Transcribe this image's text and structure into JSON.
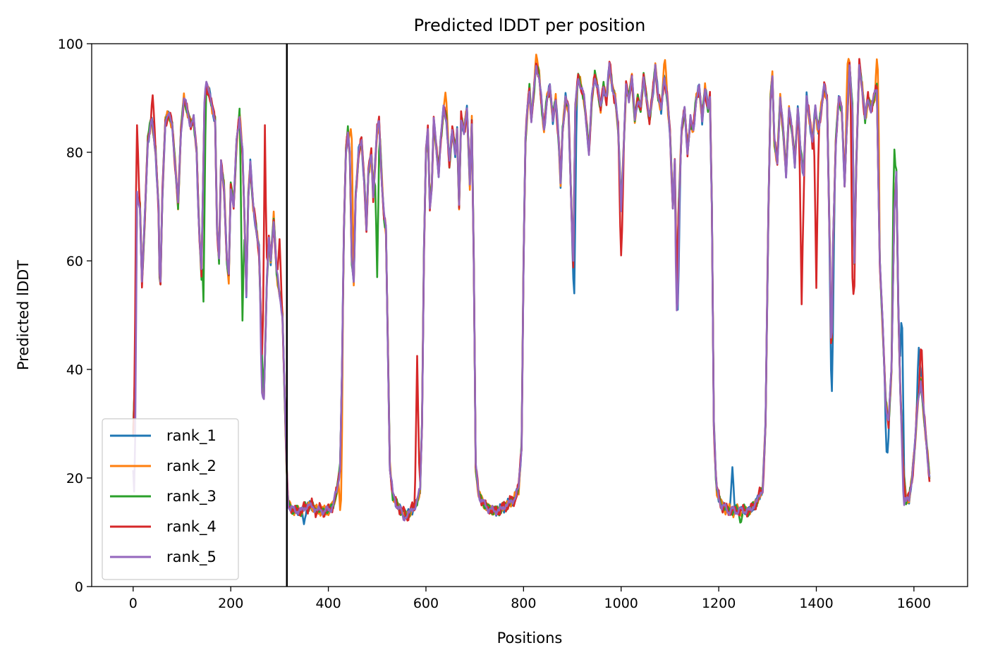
{
  "chart_data": {
    "type": "line",
    "title": "Predicted lDDT per position",
    "xlabel": "Positions",
    "ylabel": "Predicted lDDT",
    "xlim": [
      -85,
      1710
    ],
    "ylim": [
      0,
      100
    ],
    "xticks": [
      0,
      200,
      400,
      600,
      800,
      1000,
      1200,
      1400,
      1600
    ],
    "yticks": [
      0,
      20,
      40,
      60,
      80,
      100
    ],
    "grid": false,
    "legend_position": "lower-left",
    "vline_x": 315,
    "vline_color": "#000000",
    "series": [
      {
        "name": "rank_1",
        "color": "#1f77b4",
        "jitter": 1.1,
        "phase": 0.0,
        "overrides": [
          [
            1228,
            22
          ],
          [
            1575,
            53
          ],
          [
            1545,
            23
          ],
          [
            1432,
            36
          ],
          [
            904,
            54
          ],
          [
            1116,
            51
          ],
          [
            350,
            11.5
          ],
          [
            1610,
            44
          ]
        ]
      },
      {
        "name": "rank_2",
        "color": "#ff7f0e",
        "jitter": 1.3,
        "phase": 1.7,
        "overrides": [
          [
            826,
            98
          ],
          [
            1465,
            98.5
          ],
          [
            1525,
            98.5
          ],
          [
            640,
            91
          ],
          [
            447,
            88
          ],
          [
            425,
            12
          ],
          [
            1090,
            97
          ]
        ]
      },
      {
        "name": "rank_3",
        "color": "#2ba02b",
        "jitter": 1.2,
        "phase": 3.1,
        "overrides": [
          [
            224,
            49
          ],
          [
            144,
            52.5
          ],
          [
            500,
            57
          ],
          [
            1560,
            80.5
          ],
          [
            1245,
            11.5
          ],
          [
            36,
            86
          ]
        ]
      },
      {
        "name": "rank_4",
        "color": "#d62728",
        "jitter": 1.6,
        "phase": 4.3,
        "overrides": [
          [
            8,
            85
          ],
          [
            582,
            42.5
          ],
          [
            1000,
            61
          ],
          [
            1370,
            52
          ],
          [
            1475,
            49
          ],
          [
            1400,
            55
          ],
          [
            1615,
            45.5
          ],
          [
            40,
            90.5
          ],
          [
            270,
            85
          ],
          [
            300,
            64
          ]
        ]
      },
      {
        "name": "rank_5",
        "color": "#9467bd",
        "jitter": 1.0,
        "phase": 5.6,
        "overrides": [
          [
            265,
            34
          ],
          [
            2,
            17.5
          ],
          [
            555,
            12
          ],
          [
            1580,
            15
          ],
          [
            1115,
            50
          ],
          [
            150,
            93
          ]
        ]
      }
    ],
    "base_profile": [
      [
        0,
        28
      ],
      [
        4,
        40
      ],
      [
        8,
        72
      ],
      [
        14,
        70
      ],
      [
        18,
        56
      ],
      [
        24,
        68
      ],
      [
        30,
        82
      ],
      [
        38,
        86
      ],
      [
        46,
        80
      ],
      [
        52,
        70
      ],
      [
        55,
        52
      ],
      [
        60,
        72
      ],
      [
        66,
        86
      ],
      [
        72,
        87
      ],
      [
        80,
        85
      ],
      [
        86,
        78
      ],
      [
        92,
        70
      ],
      [
        98,
        84
      ],
      [
        104,
        90
      ],
      [
        110,
        88
      ],
      [
        118,
        85
      ],
      [
        124,
        86
      ],
      [
        130,
        80
      ],
      [
        135,
        66
      ],
      [
        140,
        58
      ],
      [
        146,
        88
      ],
      [
        150,
        92
      ],
      [
        156,
        91
      ],
      [
        162,
        88
      ],
      [
        168,
        86
      ],
      [
        172,
        66
      ],
      [
        176,
        60
      ],
      [
        180,
        78
      ],
      [
        186,
        74
      ],
      [
        192,
        60
      ],
      [
        196,
        57
      ],
      [
        200,
        74
      ],
      [
        206,
        70
      ],
      [
        212,
        82
      ],
      [
        218,
        87
      ],
      [
        224,
        80
      ],
      [
        228,
        68
      ],
      [
        232,
        54
      ],
      [
        236,
        72
      ],
      [
        240,
        78
      ],
      [
        246,
        70
      ],
      [
        252,
        66
      ],
      [
        258,
        62
      ],
      [
        264,
        42
      ],
      [
        268,
        35
      ],
      [
        274,
        56
      ],
      [
        278,
        64
      ],
      [
        282,
        60
      ],
      [
        288,
        68
      ],
      [
        294,
        58
      ],
      [
        300,
        54
      ],
      [
        306,
        50
      ],
      [
        312,
        30
      ],
      [
        315,
        20
      ],
      [
        318,
        15
      ],
      [
        330,
        14
      ],
      [
        345,
        14
      ],
      [
        360,
        15
      ],
      [
        380,
        14
      ],
      [
        400,
        14
      ],
      [
        410,
        15
      ],
      [
        418,
        18
      ],
      [
        424,
        22
      ],
      [
        428,
        40
      ],
      [
        432,
        66
      ],
      [
        436,
        80
      ],
      [
        440,
        84
      ],
      [
        444,
        80
      ],
      [
        448,
        60
      ],
      [
        452,
        56
      ],
      [
        456,
        72
      ],
      [
        462,
        80
      ],
      [
        468,
        82
      ],
      [
        474,
        74
      ],
      [
        478,
        66
      ],
      [
        482,
        76
      ],
      [
        488,
        80
      ],
      [
        492,
        72
      ],
      [
        496,
        78
      ],
      [
        500,
        84
      ],
      [
        504,
        86
      ],
      [
        510,
        74
      ],
      [
        514,
        68
      ],
      [
        518,
        66
      ],
      [
        522,
        44
      ],
      [
        526,
        22
      ],
      [
        532,
        17
      ],
      [
        540,
        15
      ],
      [
        550,
        14
      ],
      [
        560,
        13
      ],
      [
        570,
        14
      ],
      [
        580,
        15
      ],
      [
        588,
        18
      ],
      [
        592,
        30
      ],
      [
        596,
        62
      ],
      [
        600,
        80
      ],
      [
        604,
        84
      ],
      [
        608,
        70
      ],
      [
        612,
        74
      ],
      [
        616,
        86
      ],
      [
        620,
        82
      ],
      [
        626,
        76
      ],
      [
        630,
        82
      ],
      [
        636,
        88
      ],
      [
        642,
        86
      ],
      [
        648,
        78
      ],
      [
        654,
        84
      ],
      [
        660,
        80
      ],
      [
        664,
        84
      ],
      [
        668,
        70
      ],
      [
        672,
        86
      ],
      [
        678,
        84
      ],
      [
        684,
        88
      ],
      [
        690,
        74
      ],
      [
        694,
        86
      ],
      [
        698,
        60
      ],
      [
        702,
        22
      ],
      [
        708,
        17
      ],
      [
        720,
        15
      ],
      [
        735,
        14
      ],
      [
        750,
        14
      ],
      [
        765,
        15
      ],
      [
        780,
        16
      ],
      [
        790,
        18
      ],
      [
        796,
        26
      ],
      [
        800,
        60
      ],
      [
        804,
        82
      ],
      [
        808,
        88
      ],
      [
        812,
        92
      ],
      [
        816,
        86
      ],
      [
        820,
        90
      ],
      [
        826,
        96
      ],
      [
        832,
        94
      ],
      [
        838,
        88
      ],
      [
        842,
        84
      ],
      [
        848,
        90
      ],
      [
        854,
        92
      ],
      [
        860,
        86
      ],
      [
        866,
        90
      ],
      [
        872,
        82
      ],
      [
        876,
        74
      ],
      [
        880,
        84
      ],
      [
        886,
        90
      ],
      [
        892,
        88
      ],
      [
        898,
        70
      ],
      [
        902,
        60
      ],
      [
        906,
        88
      ],
      [
        912,
        94
      ],
      [
        918,
        92
      ],
      [
        924,
        90
      ],
      [
        930,
        84
      ],
      [
        934,
        80
      ],
      [
        940,
        90
      ],
      [
        946,
        94
      ],
      [
        952,
        92
      ],
      [
        958,
        88
      ],
      [
        964,
        92
      ],
      [
        970,
        90
      ],
      [
        976,
        96
      ],
      [
        982,
        92
      ],
      [
        988,
        90
      ],
      [
        994,
        84
      ],
      [
        1000,
        70
      ],
      [
        1004,
        78
      ],
      [
        1010,
        92
      ],
      [
        1016,
        90
      ],
      [
        1022,
        94
      ],
      [
        1028,
        86
      ],
      [
        1034,
        90
      ],
      [
        1040,
        88
      ],
      [
        1046,
        94
      ],
      [
        1052,
        90
      ],
      [
        1058,
        86
      ],
      [
        1064,
        90
      ],
      [
        1070,
        96
      ],
      [
        1076,
        90
      ],
      [
        1082,
        88
      ],
      [
        1088,
        94
      ],
      [
        1094,
        90
      ],
      [
        1100,
        84
      ],
      [
        1106,
        70
      ],
      [
        1110,
        78
      ],
      [
        1114,
        54
      ],
      [
        1118,
        70
      ],
      [
        1124,
        84
      ],
      [
        1130,
        88
      ],
      [
        1136,
        80
      ],
      [
        1142,
        86
      ],
      [
        1148,
        84
      ],
      [
        1154,
        90
      ],
      [
        1160,
        92
      ],
      [
        1166,
        86
      ],
      [
        1172,
        92
      ],
      [
        1178,
        88
      ],
      [
        1182,
        90
      ],
      [
        1186,
        70
      ],
      [
        1190,
        30
      ],
      [
        1195,
        18
      ],
      [
        1205,
        15
      ],
      [
        1220,
        14
      ],
      [
        1235,
        14
      ],
      [
        1250,
        14
      ],
      [
        1265,
        14
      ],
      [
        1280,
        16
      ],
      [
        1290,
        18
      ],
      [
        1296,
        30
      ],
      [
        1302,
        70
      ],
      [
        1306,
        90
      ],
      [
        1310,
        94
      ],
      [
        1314,
        82
      ],
      [
        1320,
        78
      ],
      [
        1326,
        90
      ],
      [
        1332,
        84
      ],
      [
        1338,
        76
      ],
      [
        1344,
        88
      ],
      [
        1350,
        84
      ],
      [
        1356,
        78
      ],
      [
        1362,
        88
      ],
      [
        1368,
        80
      ],
      [
        1374,
        76
      ],
      [
        1380,
        90
      ],
      [
        1386,
        86
      ],
      [
        1392,
        82
      ],
      [
        1398,
        88
      ],
      [
        1404,
        84
      ],
      [
        1410,
        88
      ],
      [
        1416,
        92
      ],
      [
        1422,
        90
      ],
      [
        1428,
        60
      ],
      [
        1431,
        38
      ],
      [
        1434,
        62
      ],
      [
        1440,
        82
      ],
      [
        1446,
        90
      ],
      [
        1452,
        88
      ],
      [
        1458,
        74
      ],
      [
        1462,
        84
      ],
      [
        1468,
        96
      ],
      [
        1474,
        88
      ],
      [
        1478,
        60
      ],
      [
        1482,
        78
      ],
      [
        1488,
        96
      ],
      [
        1494,
        92
      ],
      [
        1500,
        86
      ],
      [
        1506,
        90
      ],
      [
        1512,
        88
      ],
      [
        1518,
        90
      ],
      [
        1524,
        92
      ],
      [
        1530,
        60
      ],
      [
        1536,
        48
      ],
      [
        1542,
        34
      ],
      [
        1548,
        30
      ],
      [
        1554,
        40
      ],
      [
        1560,
        70
      ],
      [
        1564,
        76
      ],
      [
        1568,
        52
      ],
      [
        1572,
        36
      ],
      [
        1578,
        22
      ],
      [
        1584,
        16
      ],
      [
        1590,
        16
      ],
      [
        1596,
        20
      ],
      [
        1602,
        26
      ],
      [
        1608,
        34
      ],
      [
        1614,
        38
      ],
      [
        1620,
        32
      ],
      [
        1626,
        26
      ],
      [
        1632,
        20
      ]
    ]
  }
}
